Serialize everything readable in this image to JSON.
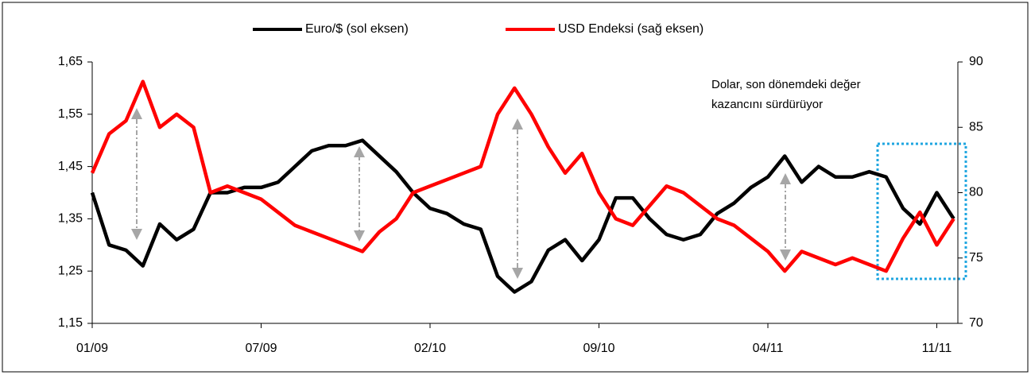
{
  "chart_data": {
    "type": "line",
    "categories": [
      "01/09",
      null,
      null,
      null,
      null,
      null,
      null,
      null,
      null,
      null,
      "07/09",
      null,
      null,
      null,
      null,
      null,
      null,
      null,
      null,
      null,
      "02/10",
      null,
      null,
      null,
      null,
      null,
      null,
      null,
      null,
      null,
      "09/10",
      null,
      null,
      null,
      null,
      null,
      null,
      null,
      null,
      null,
      "04/11",
      null,
      null,
      null,
      null,
      null,
      null,
      null,
      null,
      null,
      "11/11",
      null
    ],
    "series": [
      {
        "name": "Euro/$ (sol eksen)",
        "color": "#000000",
        "values": [
          1.4,
          1.3,
          1.29,
          1.26,
          1.34,
          1.31,
          1.33,
          1.4,
          1.4,
          1.41,
          1.41,
          1.42,
          1.45,
          1.48,
          1.49,
          1.49,
          1.5,
          1.47,
          1.44,
          1.4,
          1.37,
          1.36,
          1.34,
          1.33,
          1.24,
          1.21,
          1.23,
          1.29,
          1.31,
          1.27,
          1.31,
          1.39,
          1.39,
          1.35,
          1.32,
          1.31,
          1.32,
          1.36,
          1.38,
          1.41,
          1.43,
          1.47,
          1.42,
          1.45,
          1.43,
          1.43,
          1.44,
          1.43,
          1.37,
          1.34,
          1.4,
          1.35
        ]
      },
      {
        "name": "USD Endeksi (sağ eksen)",
        "color": "#ff0000",
        "axis": "y2",
        "values": [
          81.5,
          84.5,
          85.5,
          88.5,
          85,
          86,
          85,
          80,
          80.5,
          80,
          79.5,
          78.5,
          77.5,
          77,
          76.5,
          76,
          75.5,
          77,
          78,
          80,
          80.5,
          81,
          81.5,
          82,
          86,
          88,
          86,
          83.5,
          81.5,
          83,
          80,
          78,
          77.5,
          79,
          80.5,
          80,
          79,
          78,
          77.5,
          76.5,
          75.5,
          74,
          75.5,
          75,
          74.5,
          75,
          74.5,
          74,
          76.5,
          78.5,
          76,
          78
        ]
      }
    ],
    "ylim": [
      1.15,
      1.65
    ],
    "yticks": [
      {
        "value": 1.15,
        "label": "1,15"
      },
      {
        "value": 1.25,
        "label": "1,25"
      },
      {
        "value": 1.35,
        "label": "1,35"
      },
      {
        "value": 1.45,
        "label": "1,45"
      },
      {
        "value": 1.55,
        "label": "1,55"
      },
      {
        "value": 1.65,
        "label": "1,65"
      }
    ],
    "y2lim": [
      70,
      90
    ],
    "y2ticks": [
      70,
      75,
      80,
      85,
      90
    ],
    "annotation": [
      "Dolar, son dönemdeki değer",
      "kazancını sürdürüyor"
    ],
    "legend": "top",
    "grid": false
  }
}
